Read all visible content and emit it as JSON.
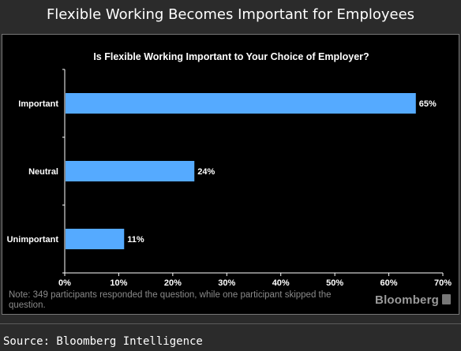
{
  "header": {
    "title": "Flexible Working Becomes Important for Employees"
  },
  "chart_data": {
    "type": "bar",
    "orientation": "horizontal",
    "title": "Is Flexible Working Important to Your Choice of Employer?",
    "categories": [
      "Important",
      "Neutral",
      "Unimportant"
    ],
    "values": [
      65,
      24,
      11
    ],
    "value_labels": [
      "65%",
      "24%",
      "11%"
    ],
    "xlim": [
      0,
      70
    ],
    "xticks": [
      "0%",
      "10%",
      "20%",
      "30%",
      "40%",
      "50%",
      "60%",
      "70%"
    ],
    "bar_color": "#55aaff",
    "background": "#000000",
    "grid": false,
    "legend": "none"
  },
  "note": "Note: 349 participants responded the question, while one participant skipped the question.",
  "brand": "Bloomberg",
  "source": "Source: Bloomberg Intelligence"
}
